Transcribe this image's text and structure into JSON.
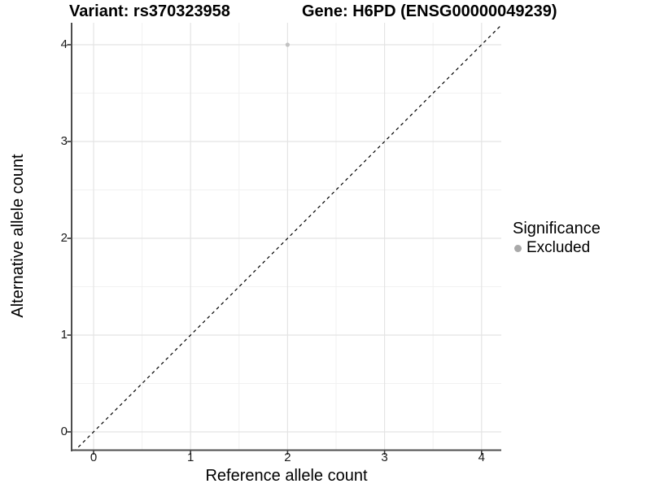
{
  "titles": {
    "variant": "Variant: rs370323958",
    "gene": "Gene: H6PD (ENSG00000049239)"
  },
  "axes": {
    "x": {
      "label": "Reference allele count",
      "tick_labels": [
        "0",
        "1",
        "2",
        "3",
        "4"
      ]
    },
    "y": {
      "label": "Alternative allele count",
      "tick_labels": [
        "0",
        "1",
        "2",
        "3",
        "4"
      ]
    }
  },
  "legend": {
    "title": "Significance",
    "items": [
      {
        "label": "Excluded",
        "color": "#a9a9a9"
      }
    ]
  },
  "chart_data": {
    "type": "scatter",
    "title_left": "Variant: rs370323958",
    "title_right": "Gene: H6PD (ENSG00000049239)",
    "xlabel": "Reference allele count",
    "ylabel": "Alternative allele count",
    "xlim": [
      -0.22,
      4.2
    ],
    "ylim": [
      -0.19,
      4.21
    ],
    "x_ticks": [
      0,
      1,
      2,
      3,
      4
    ],
    "y_ticks": [
      0,
      1,
      2,
      3,
      4
    ],
    "grid": {
      "major": true,
      "minor": true,
      "minor_interval": 0.5
    },
    "legend_position": "right",
    "series": [
      {
        "name": "Excluded",
        "color": "#c2c2c2",
        "points": [
          {
            "x": 2,
            "y": 4
          }
        ]
      }
    ],
    "reference_line": {
      "kind": "identity y=x",
      "style": "dashed",
      "color": "#000000"
    }
  },
  "style": {
    "grid_major_color": "#e4e4e4",
    "grid_minor_color": "#f1f1f1",
    "axis_line_color": "#4d4d4d",
    "tick_mark_color": "#333333",
    "point_color": "#c2c2c2",
    "legend_dot_color": "#a9a9a9",
    "ref_line_color": "#000000",
    "background_color": "#ffffff"
  }
}
